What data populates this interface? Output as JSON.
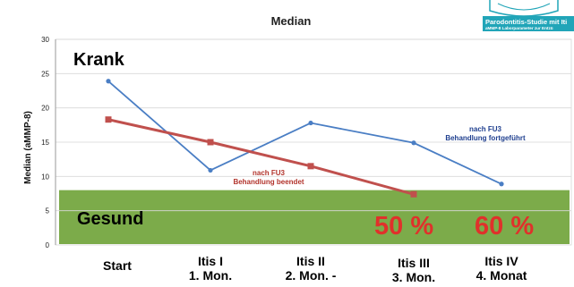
{
  "chart_data": {
    "type": "line",
    "title": "Median",
    "ylabel": "Median (aMMP-8)",
    "xlabel": "",
    "ylim": [
      0,
      30
    ],
    "yticks": [
      0,
      5,
      10,
      15,
      20,
      25,
      30
    ],
    "grid": "horizontal",
    "categories": [
      [
        "Start"
      ],
      [
        "Itis I",
        "1. Mon."
      ],
      [
        "Itis II",
        "2. Mon. -"
      ],
      [
        "Itis III",
        "3. Mon."
      ],
      [
        "Itis IV",
        "4. Monat"
      ]
    ],
    "series": [
      {
        "name": "",
        "color": "#4a7ec4",
        "values": [
          23.9,
          10.9,
          17.8,
          14.9,
          8.9
        ]
      },
      {
        "name": "",
        "color": "#c0504d",
        "values": [
          18.3,
          15.0,
          11.5,
          7.4,
          null
        ]
      }
    ],
    "healthy_band": {
      "from": 0,
      "to": 8,
      "color": "#7cab4a"
    },
    "annotations": {
      "sick": "Krank",
      "healthy": "Gesund",
      "pct_left": "50 %",
      "pct_right": "60 %",
      "blue_note": [
        "nach FU3",
        "Behandlung fortgeführt"
      ],
      "red_note": [
        "nach FU3",
        "Behandlung beendet"
      ]
    }
  },
  "logo": {
    "line1": "Parodontitis-Studie mit Iti",
    "line2": "aMMP-8 Laborparameter zur Entzü",
    "bg": "#21a5b8"
  }
}
